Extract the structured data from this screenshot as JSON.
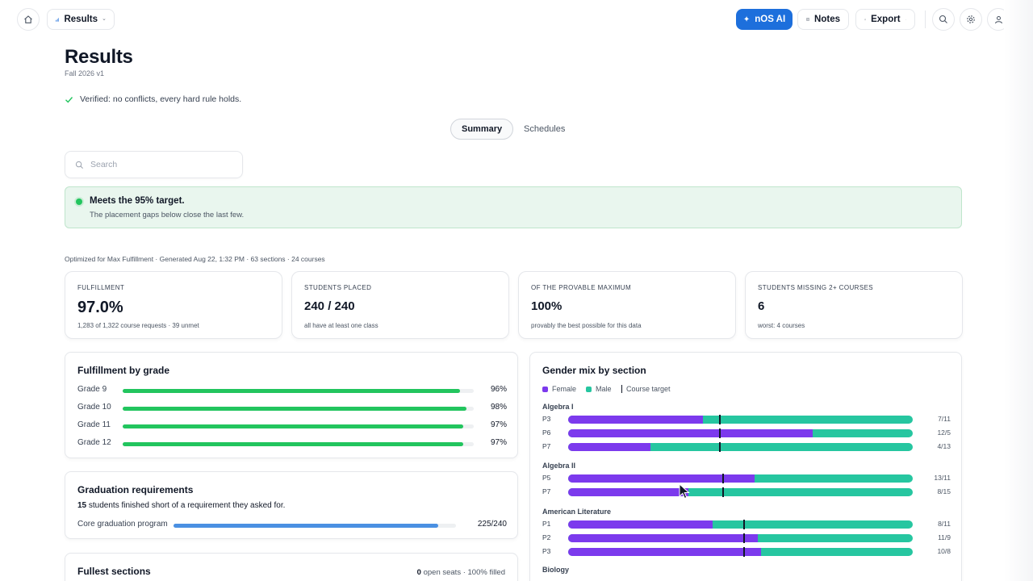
{
  "header": {
    "nav_label": "Results",
    "ai_label": "nOS AI",
    "notes_label": "Notes",
    "export_label": "Export"
  },
  "page": {
    "title": "Results",
    "subtitle": "Fall 2026 v1",
    "verified": "Verified: no conflicts, every hard rule holds."
  },
  "tabs": [
    {
      "label": "Summary",
      "active": true
    },
    {
      "label": "Schedules",
      "active": false
    }
  ],
  "search": {
    "placeholder": "Search"
  },
  "banner": {
    "headline": "Meets the 95% target.",
    "detail": "The placement gaps below close the last few."
  },
  "meta_line": "Optimized for Max Fulfillment · Generated Aug 22, 1:32 PM · 63 sections · 24 courses",
  "stats": [
    {
      "label": "Fulfillment",
      "value": "97.0%",
      "sub": "1,283 of 1,322 course requests · 39 unmet"
    },
    {
      "label": "Students placed",
      "value": "240 / 240",
      "sub": "all have at least one class"
    },
    {
      "label": "Of the provable maximum",
      "value": "100%",
      "sub": "provably the best possible for this data"
    },
    {
      "label": "Students missing 2+ courses",
      "value": "6",
      "sub": "worst: 4 courses"
    }
  ],
  "fulfillment_by_grade": {
    "title": "Fulfillment by grade",
    "rows": [
      {
        "label": "Grade 9",
        "pct_text": "96%",
        "value": 0.96
      },
      {
        "label": "Grade 10",
        "pct_text": "98%",
        "value": 0.98
      },
      {
        "label": "Grade 11",
        "pct_text": "97%",
        "value": 0.97
      },
      {
        "label": "Grade 12",
        "pct_text": "97%",
        "value": 0.97
      }
    ]
  },
  "graduation": {
    "title": "Graduation requirements",
    "count": "15",
    "text": " students finished short of a requirement they asked for.",
    "program_label": "Core graduation program",
    "program_count": "225/240",
    "program_value": 0.9375
  },
  "fullest": {
    "title": "Fullest sections",
    "open_count": "0",
    "summary": " open seats · 100% filled"
  },
  "gender_mix": {
    "title": "Gender mix by section",
    "legend": {
      "female": "Female",
      "male": "Male",
      "target": "Course target"
    },
    "colors": {
      "female": "#7c3aed",
      "male": "#26c6a0",
      "target": "#111827"
    },
    "courses": [
      {
        "name": "Algebra I",
        "target": 0.44,
        "sections": [
          {
            "label": "P3",
            "ratio": "7/11",
            "female_share": 0.39
          },
          {
            "label": "P6",
            "ratio": "12/5",
            "female_share": 0.71
          },
          {
            "label": "P7",
            "ratio": "4/13",
            "female_share": 0.24
          }
        ]
      },
      {
        "name": "Algebra II",
        "target": 0.45,
        "sections": [
          {
            "label": "P5",
            "ratio": "13/11",
            "female_share": 0.54
          },
          {
            "label": "P7",
            "ratio": "8/15",
            "female_share": 0.35
          }
        ]
      },
      {
        "name": "American Literature",
        "target": 0.51,
        "sections": [
          {
            "label": "P1",
            "ratio": "8/11",
            "female_share": 0.42
          },
          {
            "label": "P2",
            "ratio": "11/9",
            "female_share": 0.55
          },
          {
            "label": "P3",
            "ratio": "10/8",
            "female_share": 0.56
          }
        ]
      },
      {
        "name": "Biology",
        "sections": []
      }
    ]
  }
}
